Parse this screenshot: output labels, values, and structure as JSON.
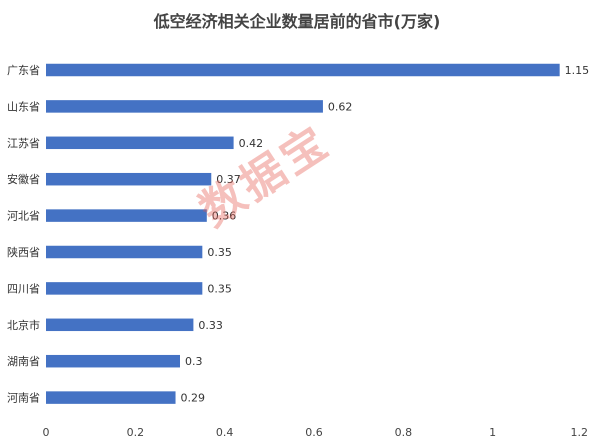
{
  "chart_data": {
    "type": "bar",
    "orientation": "horizontal",
    "title": "低空经济相关企业数量居前的省市(万家)",
    "categories": [
      "广东省",
      "山东省",
      "江苏省",
      "安徽省",
      "河北省",
      "陕西省",
      "四川省",
      "北京市",
      "湖南省",
      "河南省"
    ],
    "values": [
      1.15,
      0.62,
      0.42,
      0.37,
      0.36,
      0.35,
      0.35,
      0.33,
      0.3,
      0.29
    ],
    "value_labels": [
      "1.15",
      "0.62",
      "0.42",
      "0.37",
      "0.36",
      "0.35",
      "0.35",
      "0.33",
      "0.3",
      "0.29"
    ],
    "xlim": [
      0,
      1.2
    ],
    "xticks": [
      0,
      0.2,
      0.4,
      0.6,
      0.8,
      1,
      1.2
    ],
    "xtick_labels": [
      "0",
      "0.2",
      "0.4",
      "0.6",
      "0.8",
      "1",
      "1.2"
    ],
    "bar_color": "#4472C4",
    "grid": false,
    "legend": "none"
  },
  "watermark": "数据宝"
}
